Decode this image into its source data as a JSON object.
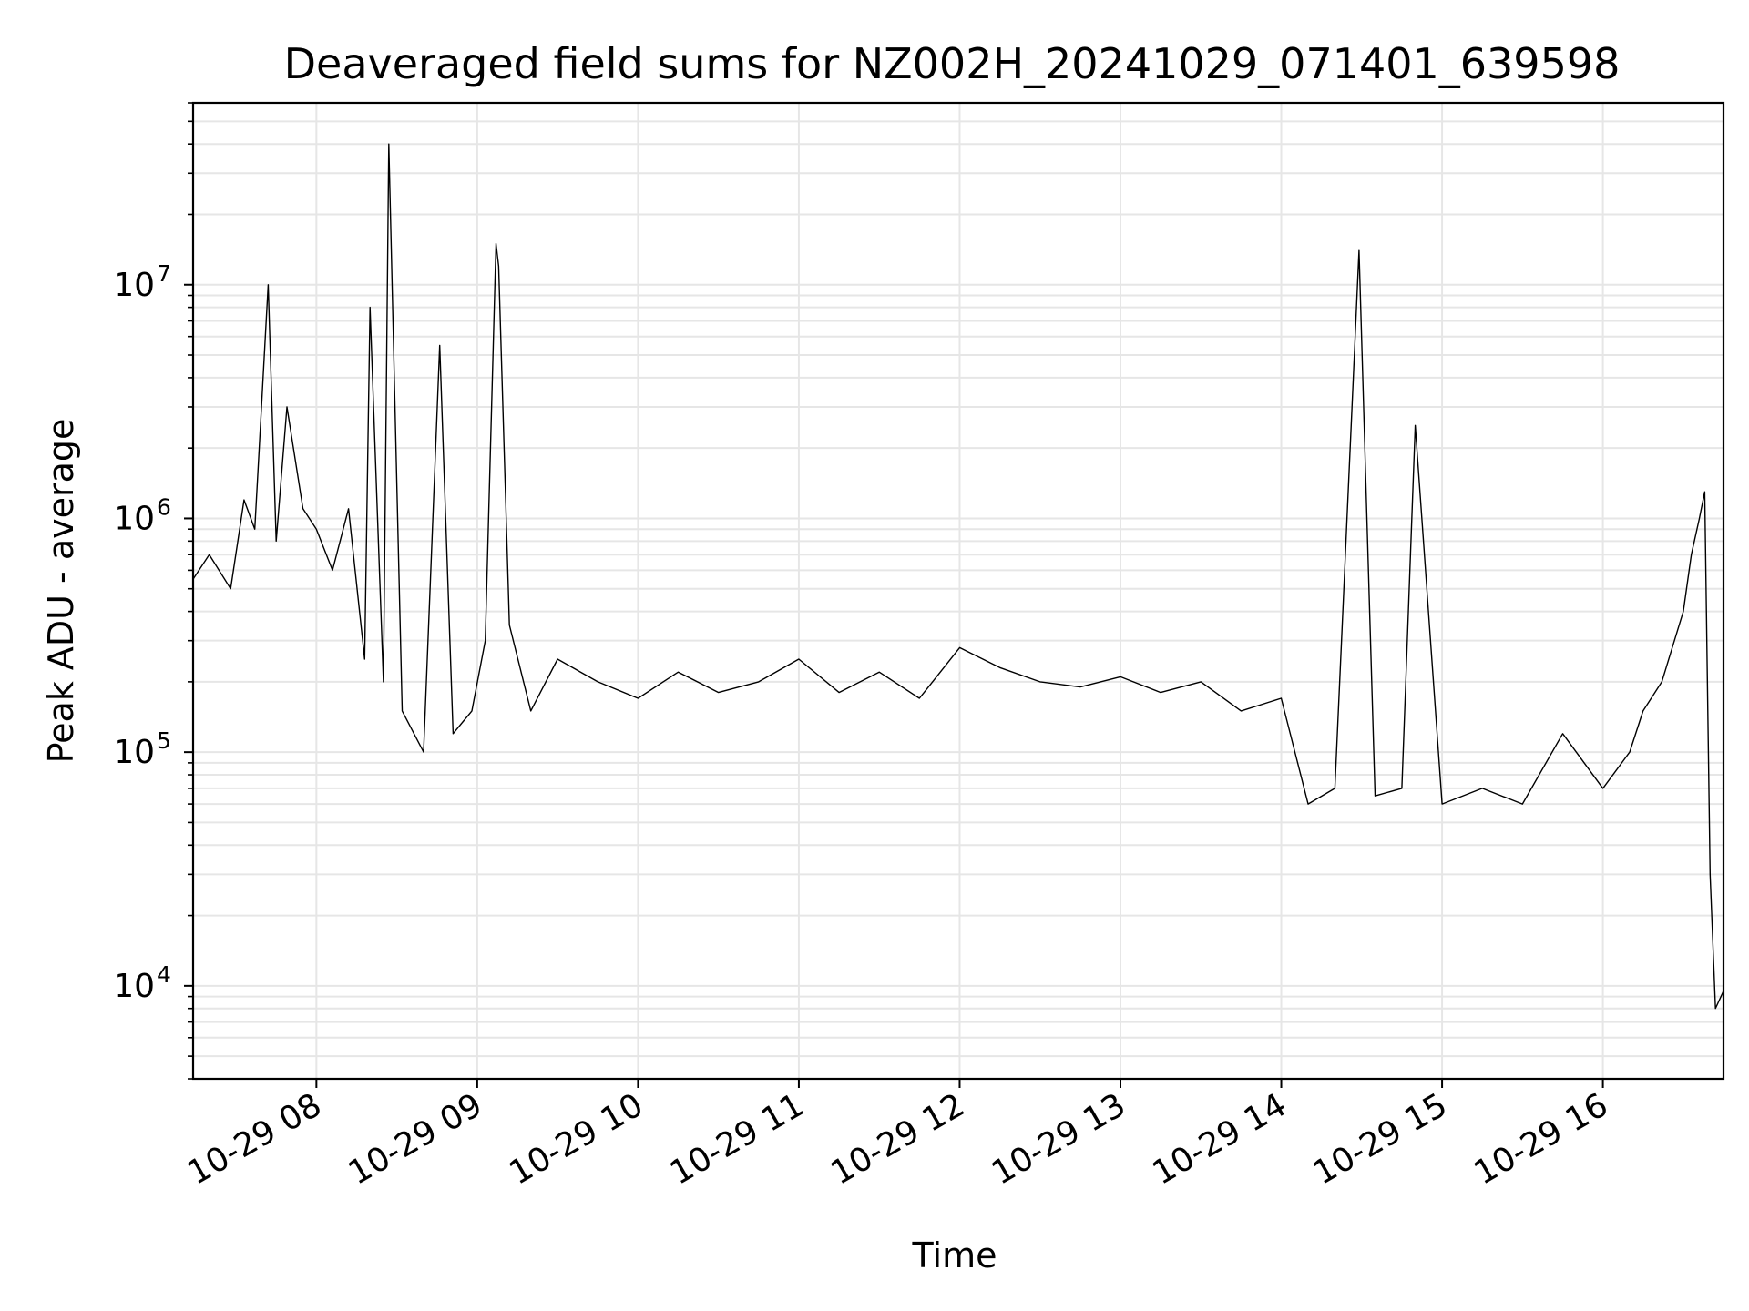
{
  "chart_data": {
    "type": "line",
    "title": "Deaveraged field sums for NZ002H_20241029_071401_639598",
    "xlabel": "Time",
    "ylabel": "Peak ADU - average",
    "yscale": "log",
    "xlim": [
      "2024-10-29 07:14",
      "2024-10-29 16:45"
    ],
    "ylim": [
      4000,
      60000000
    ],
    "grid": true,
    "line_color": "#000000",
    "grid_color": "#e6e6e6",
    "x_ticks": [
      {
        "value": "2024-10-29 08:00",
        "label": "10-29 08"
      },
      {
        "value": "2024-10-29 09:00",
        "label": "10-29 09"
      },
      {
        "value": "2024-10-29 10:00",
        "label": "10-29 10"
      },
      {
        "value": "2024-10-29 11:00",
        "label": "10-29 11"
      },
      {
        "value": "2024-10-29 12:00",
        "label": "10-29 12"
      },
      {
        "value": "2024-10-29 13:00",
        "label": "10-29 13"
      },
      {
        "value": "2024-10-29 14:00",
        "label": "10-29 14"
      },
      {
        "value": "2024-10-29 15:00",
        "label": "10-29 15"
      },
      {
        "value": "2024-10-29 16:00",
        "label": "10-29 16"
      }
    ],
    "y_ticks": [
      {
        "value": 10000,
        "base": "10",
        "exp": "4"
      },
      {
        "value": 100000,
        "base": "10",
        "exp": "5"
      },
      {
        "value": 1000000,
        "base": "10",
        "exp": "6"
      },
      {
        "value": 10000000,
        "base": "10",
        "exp": "7"
      }
    ],
    "series": [
      {
        "x": [
          "2024-10-29 07:14",
          "2024-10-29 07:20",
          "2024-10-29 07:28",
          "2024-10-29 07:33",
          "2024-10-29 07:37",
          "2024-10-29 07:42",
          "2024-10-29 07:45",
          "2024-10-29 07:49",
          "2024-10-29 07:55",
          "2024-10-29 08:00",
          "2024-10-29 08:06",
          "2024-10-29 08:12",
          "2024-10-29 08:18",
          "2024-10-29 08:20",
          "2024-10-29 08:25",
          "2024-10-29 08:27",
          "2024-10-29 08:32",
          "2024-10-29 08:40",
          "2024-10-29 08:46",
          "2024-10-29 08:51",
          "2024-10-29 08:58",
          "2024-10-29 09:03",
          "2024-10-29 09:07",
          "2024-10-29 09:08",
          "2024-10-29 09:12",
          "2024-10-29 09:20",
          "2024-10-29 09:30",
          "2024-10-29 09:45",
          "2024-10-29 10:00",
          "2024-10-29 10:15",
          "2024-10-29 10:30",
          "2024-10-29 10:45",
          "2024-10-29 11:00",
          "2024-10-29 11:15",
          "2024-10-29 11:30",
          "2024-10-29 11:45",
          "2024-10-29 12:00",
          "2024-10-29 12:15",
          "2024-10-29 12:30",
          "2024-10-29 12:45",
          "2024-10-29 13:00",
          "2024-10-29 13:15",
          "2024-10-29 13:30",
          "2024-10-29 13:45",
          "2024-10-29 14:00",
          "2024-10-29 14:10",
          "2024-10-29 14:20",
          "2024-10-29 14:29",
          "2024-10-29 14:35",
          "2024-10-29 14:45",
          "2024-10-29 14:50",
          "2024-10-29 15:00",
          "2024-10-29 15:15",
          "2024-10-29 15:30",
          "2024-10-29 15:45",
          "2024-10-29 16:00",
          "2024-10-29 16:10",
          "2024-10-29 16:15",
          "2024-10-29 16:22",
          "2024-10-29 16:30",
          "2024-10-29 16:33",
          "2024-10-29 16:36",
          "2024-10-29 16:38",
          "2024-10-29 16:40",
          "2024-10-29 16:42",
          "2024-10-29 16:45"
        ],
        "y": [
          550000,
          700000,
          500000,
          1200000,
          900000,
          10000000,
          800000,
          3000000,
          1100000,
          900000,
          600000,
          1100000,
          250000,
          8000000,
          200000,
          40000000,
          150000,
          100000,
          5500000,
          120000,
          150000,
          300000,
          15000000,
          12000000,
          350000,
          150000,
          250000,
          200000,
          170000,
          220000,
          180000,
          200000,
          250000,
          180000,
          220000,
          170000,
          280000,
          230000,
          200000,
          190000,
          210000,
          180000,
          200000,
          150000,
          170000,
          60000,
          70000,
          14000000,
          65000,
          70000,
          2500000,
          60000,
          70000,
          60000,
          120000,
          70000,
          100000,
          150000,
          200000,
          400000,
          700000,
          1000000,
          1300000,
          30000,
          8000,
          9500
        ]
      }
    ]
  }
}
